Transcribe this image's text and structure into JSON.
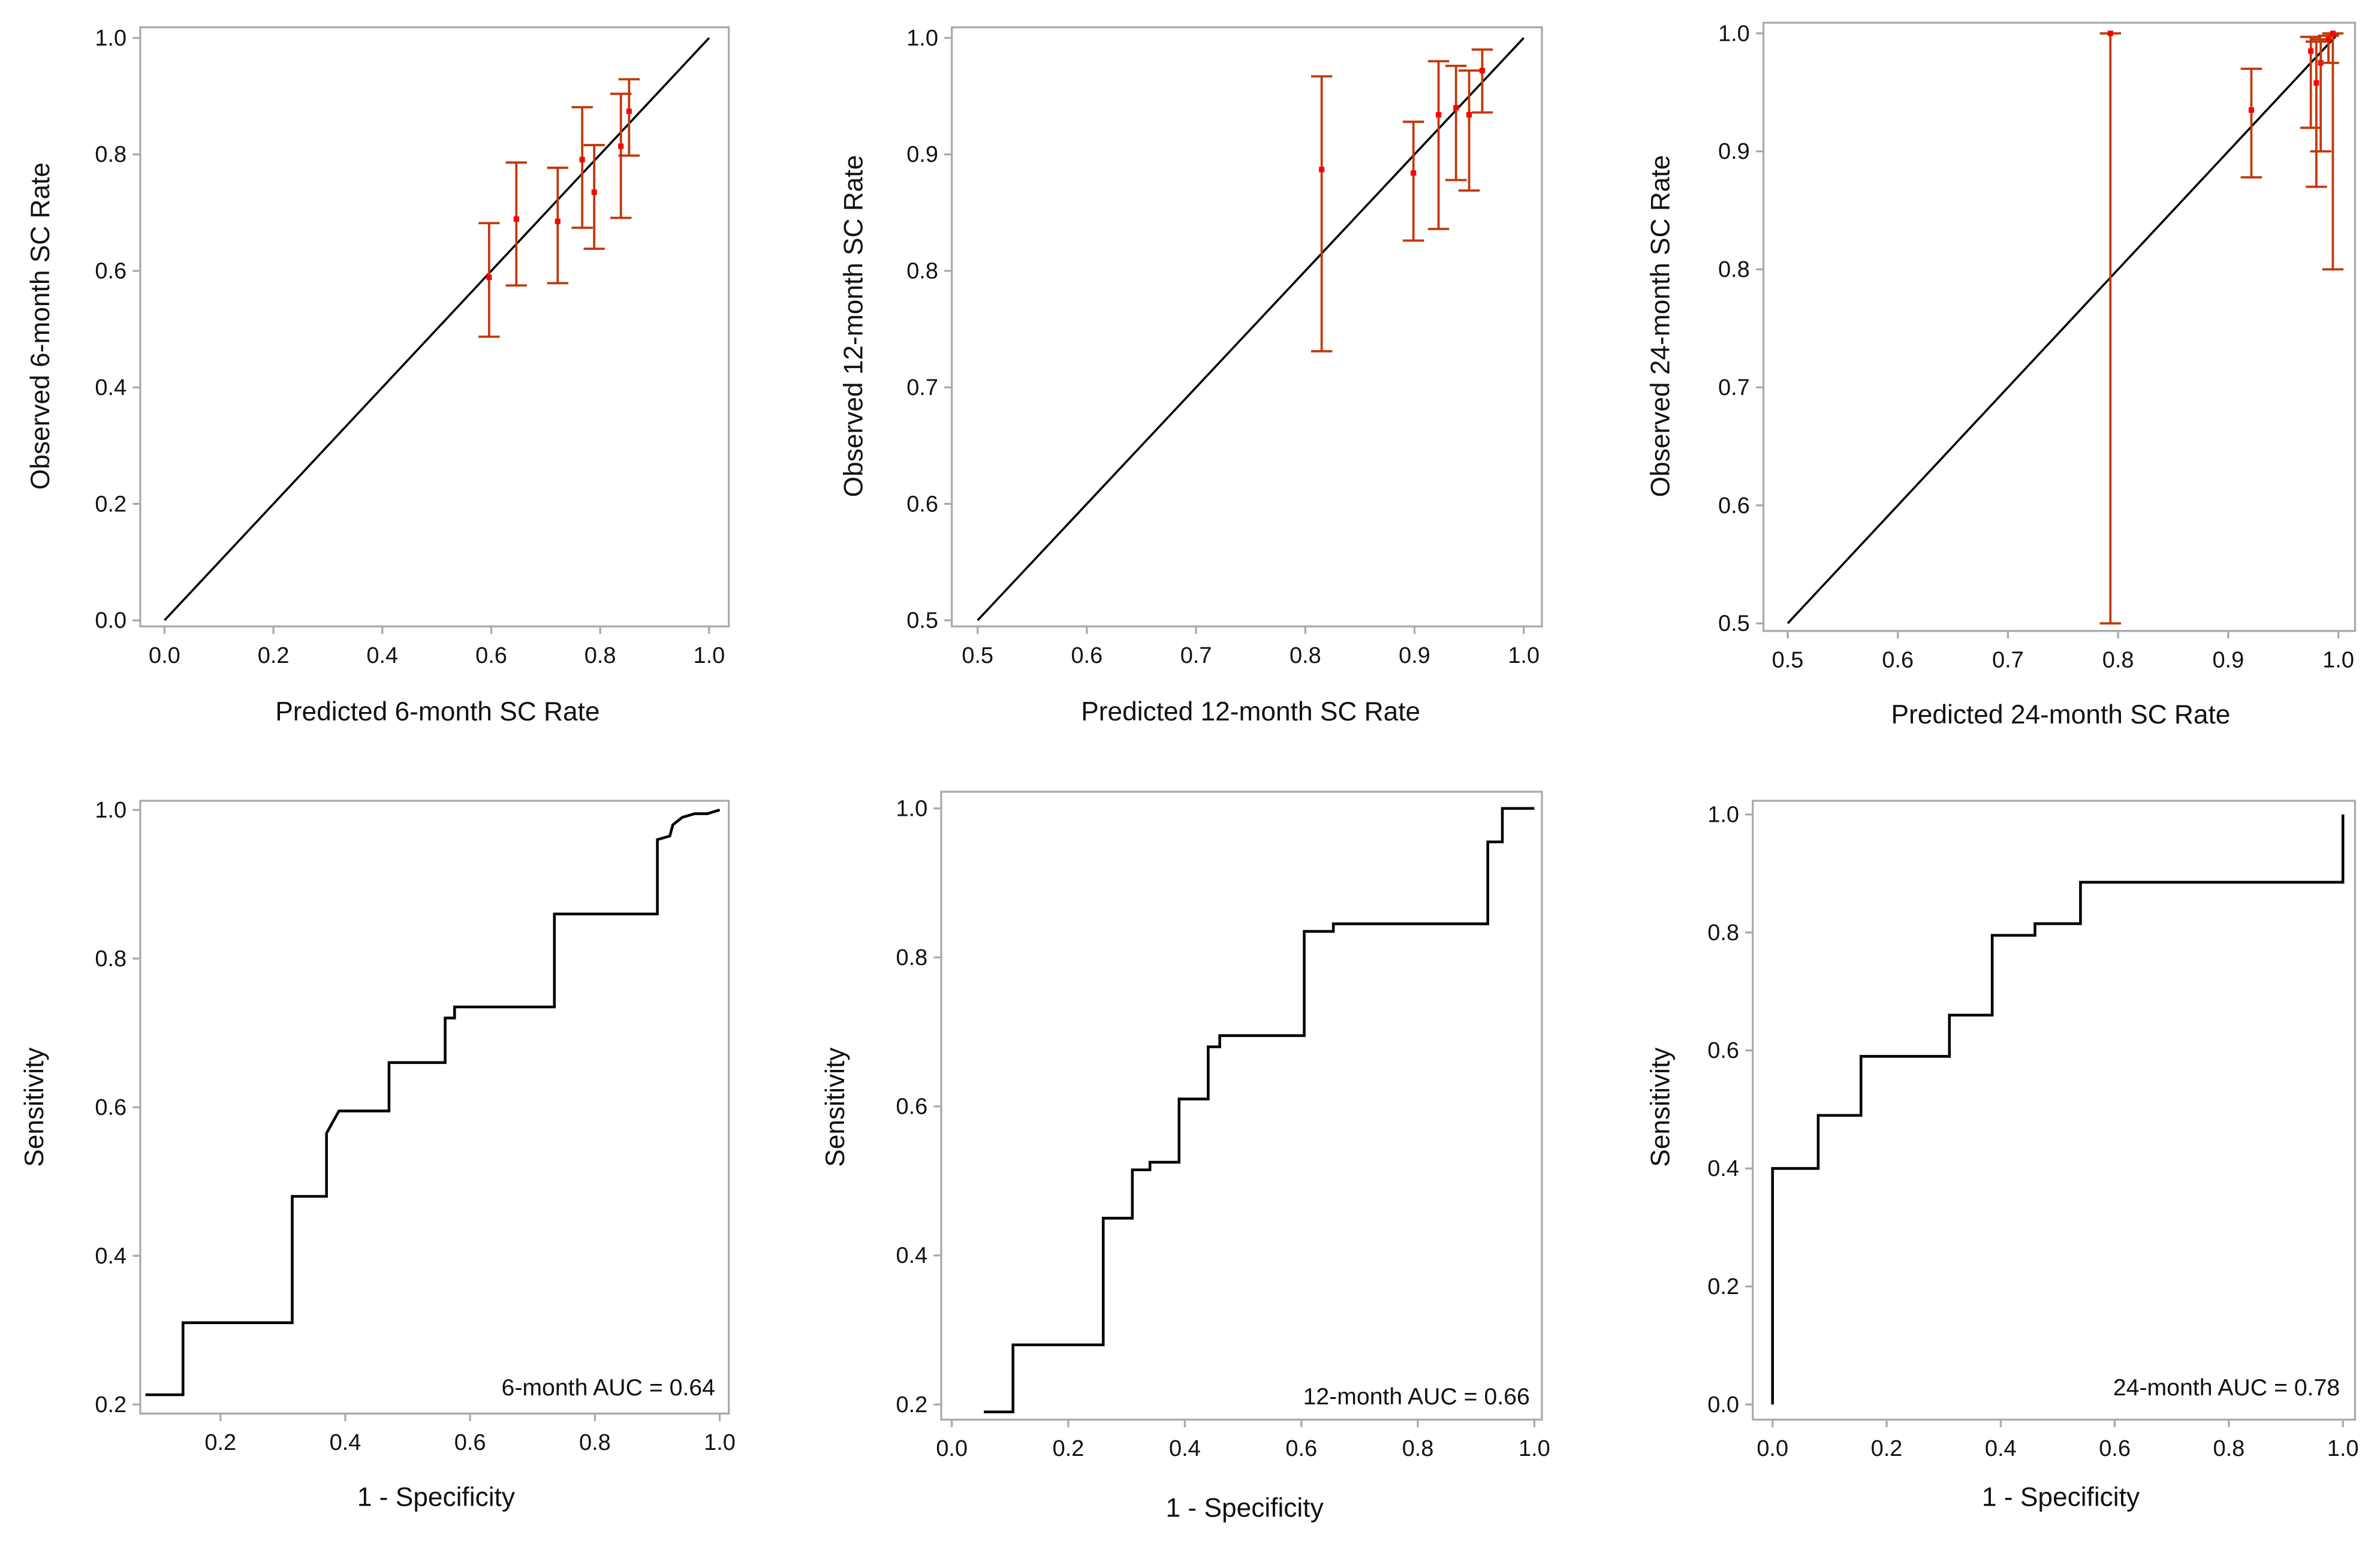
{
  "colors": {
    "errorbar": "#c0390b",
    "point": "#ff0000",
    "line": "#000000",
    "frame": "#aaaaaa"
  },
  "chart_data": [
    {
      "type": "scatter",
      "id": "cal6",
      "xlabel": "Predicted 6-month SC Rate",
      "ylabel": "Observed 6-month SC Rate",
      "xlim": [
        0,
        1
      ],
      "ylim": [
        0,
        1
      ],
      "xticks": [
        "0.0",
        "0.2",
        "0.4",
        "0.6",
        "0.8",
        "1.0"
      ],
      "yticks": [
        "0.0",
        "0.2",
        "0.4",
        "0.6",
        "0.8",
        "1.0"
      ],
      "reference_line": "y = x",
      "points": [
        {
          "x": 0.596,
          "y": 0.589,
          "lo": 0.487,
          "hi": 0.682
        },
        {
          "x": 0.646,
          "y": 0.689,
          "lo": 0.575,
          "hi": 0.786
        },
        {
          "x": 0.722,
          "y": 0.685,
          "lo": 0.579,
          "hi": 0.777
        },
        {
          "x": 0.767,
          "y": 0.791,
          "lo": 0.674,
          "hi": 0.881
        },
        {
          "x": 0.789,
          "y": 0.735,
          "lo": 0.638,
          "hi": 0.816
        },
        {
          "x": 0.838,
          "y": 0.814,
          "lo": 0.691,
          "hi": 0.904
        },
        {
          "x": 0.853,
          "y": 0.874,
          "lo": 0.798,
          "hi": 0.929
        }
      ]
    },
    {
      "type": "scatter",
      "id": "cal12",
      "xlabel": "Predicted 12-month SC Rate",
      "ylabel": "Observed 12-month SC Rate",
      "xlim": [
        0.5,
        1
      ],
      "ylim": [
        0.5,
        1
      ],
      "xticks": [
        "0.5",
        "0.6",
        "0.7",
        "0.8",
        "0.9",
        "1.0"
      ],
      "yticks": [
        "0.5",
        "0.6",
        "0.7",
        "0.8",
        "0.9",
        "1.0"
      ],
      "reference_line": "y = x",
      "points": [
        {
          "x": 0.815,
          "y": 0.887,
          "lo": 0.731,
          "hi": 0.967
        },
        {
          "x": 0.899,
          "y": 0.884,
          "lo": 0.826,
          "hi": 0.928
        },
        {
          "x": 0.922,
          "y": 0.934,
          "lo": 0.836,
          "hi": 0.98
        },
        {
          "x": 0.938,
          "y": 0.94,
          "lo": 0.878,
          "hi": 0.976
        },
        {
          "x": 0.95,
          "y": 0.934,
          "lo": 0.869,
          "hi": 0.972
        },
        {
          "x": 0.962,
          "y": 0.972,
          "lo": 0.936,
          "hi": 0.99
        }
      ]
    },
    {
      "type": "scatter",
      "id": "cal24",
      "xlabel": "Predicted 24-month SC Rate",
      "ylabel": "Observed 24-month SC Rate",
      "xlim": [
        0.5,
        1
      ],
      "ylim": [
        0.5,
        1
      ],
      "xticks": [
        "0.5",
        "0.6",
        "0.7",
        "0.8",
        "0.9",
        "1.0"
      ],
      "yticks": [
        "0.5",
        "0.6",
        "0.7",
        "0.8",
        "0.9",
        "1.0"
      ],
      "reference_line": "y = x",
      "points": [
        {
          "x": 0.793,
          "y": 1.0,
          "lo": 0.5,
          "hi": 1.0
        },
        {
          "x": 0.921,
          "y": 0.935,
          "lo": 0.878,
          "hi": 0.97
        },
        {
          "x": 0.975,
          "y": 0.985,
          "lo": 0.92,
          "hi": 0.997
        },
        {
          "x": 0.98,
          "y": 0.958,
          "lo": 0.87,
          "hi": 0.993
        },
        {
          "x": 0.984,
          "y": 0.975,
          "lo": 0.9,
          "hi": 0.995
        },
        {
          "x": 0.991,
          "y": 0.995,
          "lo": 0.975,
          "hi": 0.998
        },
        {
          "x": 0.995,
          "y": 1.0,
          "lo": 0.8,
          "hi": 1.0
        }
      ]
    },
    {
      "type": "line",
      "id": "roc6",
      "xlabel": "1 - Specificity",
      "ylabel": "Sensitivity",
      "xlim": [
        0,
        1
      ],
      "ylim": [
        0.2,
        1
      ],
      "xticks": [
        "0.2",
        "0.4",
        "0.6",
        "0.8",
        "1.0"
      ],
      "yticks": [
        "0.2",
        "0.4",
        "0.6",
        "0.8",
        "1.0"
      ],
      "annotation": "6-month AUC = 0.64",
      "points": [
        [
          0.08,
          0.213
        ],
        [
          0.14,
          0.213
        ],
        [
          0.14,
          0.31
        ],
        [
          0.315,
          0.31
        ],
        [
          0.315,
          0.48
        ],
        [
          0.37,
          0.48
        ],
        [
          0.37,
          0.565
        ],
        [
          0.38,
          0.58
        ],
        [
          0.39,
          0.595
        ],
        [
          0.47,
          0.595
        ],
        [
          0.47,
          0.66
        ],
        [
          0.56,
          0.66
        ],
        [
          0.56,
          0.72
        ],
        [
          0.575,
          0.72
        ],
        [
          0.575,
          0.735
        ],
        [
          0.735,
          0.735
        ],
        [
          0.735,
          0.86
        ],
        [
          0.9,
          0.86
        ],
        [
          0.9,
          0.96
        ],
        [
          0.92,
          0.965
        ],
        [
          0.925,
          0.98
        ],
        [
          0.94,
          0.99
        ],
        [
          0.96,
          0.995
        ],
        [
          0.98,
          0.995
        ],
        [
          1.0,
          1.0
        ]
      ]
    },
    {
      "type": "line",
      "id": "roc12",
      "xlabel": "1 - Specificity",
      "ylabel": "Sensitivity",
      "xlim": [
        0,
        1
      ],
      "ylim": [
        0.2,
        1
      ],
      "xticks": [
        "0.0",
        "0.2",
        "0.4",
        "0.6",
        "0.8",
        "1.0"
      ],
      "yticks": [
        "0.2",
        "0.4",
        "0.6",
        "0.8",
        "1.0"
      ],
      "annotation": "12-month AUC = 0.66",
      "points": [
        [
          0.055,
          0.19
        ],
        [
          0.105,
          0.19
        ],
        [
          0.105,
          0.28
        ],
        [
          0.26,
          0.28
        ],
        [
          0.26,
          0.45
        ],
        [
          0.31,
          0.45
        ],
        [
          0.31,
          0.515
        ],
        [
          0.34,
          0.515
        ],
        [
          0.34,
          0.525
        ],
        [
          0.39,
          0.525
        ],
        [
          0.39,
          0.61
        ],
        [
          0.44,
          0.61
        ],
        [
          0.44,
          0.68
        ],
        [
          0.46,
          0.68
        ],
        [
          0.46,
          0.695
        ],
        [
          0.605,
          0.695
        ],
        [
          0.605,
          0.835
        ],
        [
          0.655,
          0.835
        ],
        [
          0.655,
          0.845
        ],
        [
          0.92,
          0.845
        ],
        [
          0.92,
          0.955
        ],
        [
          0.945,
          0.955
        ],
        [
          0.945,
          1.0
        ],
        [
          1.0,
          1.0
        ]
      ]
    },
    {
      "type": "line",
      "id": "roc24",
      "xlabel": "1 - Specificity",
      "ylabel": "Sensitivity",
      "xlim": [
        0,
        1
      ],
      "ylim": [
        0,
        1
      ],
      "xticks": [
        "0.0",
        "0.2",
        "0.4",
        "0.6",
        "0.8",
        "1.0"
      ],
      "yticks": [
        "0.0",
        "0.2",
        "0.4",
        "0.6",
        "0.8",
        "1.0"
      ],
      "annotation": "24-month AUC = 0.78",
      "points": [
        [
          0,
          0
        ],
        [
          0,
          0.4
        ],
        [
          0.08,
          0.4
        ],
        [
          0.08,
          0.49
        ],
        [
          0.155,
          0.49
        ],
        [
          0.155,
          0.59
        ],
        [
          0.31,
          0.59
        ],
        [
          0.31,
          0.66
        ],
        [
          0.385,
          0.66
        ],
        [
          0.385,
          0.795
        ],
        [
          0.46,
          0.795
        ],
        [
          0.46,
          0.815
        ],
        [
          0.54,
          0.815
        ],
        [
          0.54,
          0.885
        ],
        [
          1.0,
          0.885
        ],
        [
          1.0,
          1.0
        ]
      ]
    }
  ]
}
